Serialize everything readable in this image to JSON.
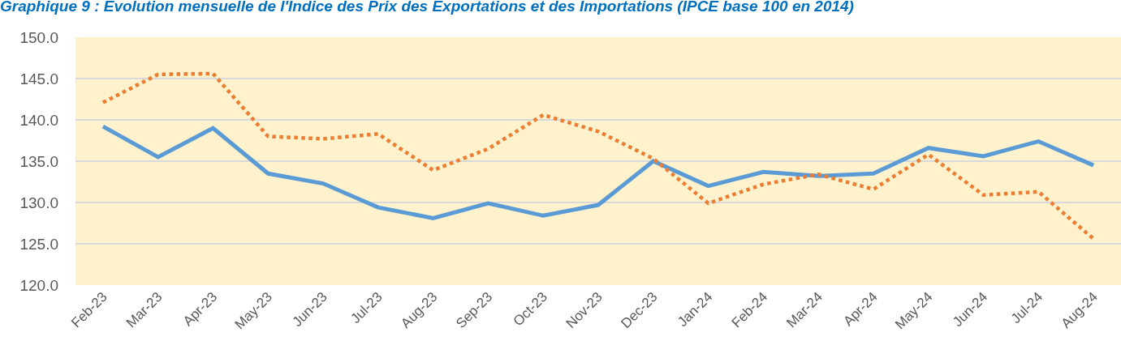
{
  "chart_data": {
    "type": "line",
    "title": "Graphique 9 : Evolution mensuelle de l'Indice des Prix des Exportations et des Importations (IPCE base 100 en 2014)",
    "categories": [
      "Feb-23",
      "Mar-23",
      "Apr-23",
      "May-23",
      "Jun-23",
      "Jul-23",
      "Aug-23",
      "Sep-23",
      "Oct-23",
      "Nov-23",
      "Dec-23",
      "Jan-24",
      "Feb-24",
      "Mar-24",
      "Apr-24",
      "May-24",
      "Jun-24",
      "Jul-24",
      "Aug-24"
    ],
    "series": [
      {
        "color": "#5b9bd5",
        "line_style": "solid",
        "values": [
          139.2,
          135.5,
          139.0,
          133.5,
          132.3,
          129.4,
          128.1,
          129.9,
          128.4,
          129.7,
          135.0,
          132.0,
          133.7,
          133.2,
          133.5,
          136.6,
          135.6,
          137.4,
          134.5
        ]
      },
      {
        "color": "#ed7d31",
        "line_style": "dotted",
        "values": [
          142.1,
          145.5,
          145.6,
          138.0,
          137.7,
          138.3,
          133.9,
          136.5,
          140.6,
          138.6,
          135.3,
          129.9,
          132.2,
          133.4,
          131.6,
          135.8,
          130.9,
          131.3,
          125.6
        ]
      }
    ],
    "ylim": [
      120,
      150
    ],
    "yticks": [
      {
        "value": 120,
        "label": "120.0"
      },
      {
        "value": 125,
        "label": "125.0"
      },
      {
        "value": 130,
        "label": "130.0"
      },
      {
        "value": 135,
        "label": "135.0"
      },
      {
        "value": 140,
        "label": "140.0"
      },
      {
        "value": 145,
        "label": "145.0"
      },
      {
        "value": 150,
        "label": "150.0"
      }
    ],
    "grid": "y",
    "marker": "none"
  }
}
